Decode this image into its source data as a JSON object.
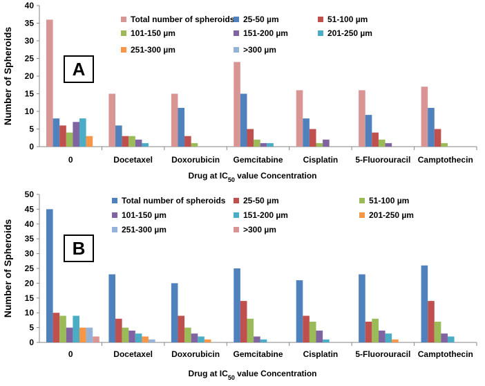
{
  "chart_data": [
    {
      "panel": "A",
      "type": "bar",
      "title": "",
      "xlabel_parts": [
        "Drug at IC",
        "50",
        " value  Concentration"
      ],
      "ylabel": "Number of Spheroids",
      "ylim": [
        0,
        40
      ],
      "yticks": [
        0,
        5,
        10,
        15,
        20,
        25,
        30,
        35,
        40
      ],
      "categories": [
        "0",
        "Docetaxel",
        "Doxorubicin",
        "Gemcitabine",
        "Cisplatin",
        "5-Fluorouracil",
        "Camptothecin"
      ],
      "series": [
        {
          "name": "Total number of spheroids",
          "color": "#D99594",
          "values": [
            36,
            15,
            15,
            24,
            16,
            16,
            17
          ]
        },
        {
          "name": "25-50 µm",
          "color": "#4F81BD",
          "values": [
            8,
            6,
            11,
            15,
            8,
            9,
            11
          ]
        },
        {
          "name": "51-100 µm",
          "color": "#C0504D",
          "values": [
            6,
            3,
            3,
            5,
            5,
            4,
            5
          ]
        },
        {
          "name": "101-150 µm",
          "color": "#9BBB59",
          "values": [
            4,
            3,
            1,
            2,
            1,
            2,
            1
          ]
        },
        {
          "name": "151-200 µm",
          "color": "#8064A2",
          "values": [
            7,
            2,
            0,
            1,
            2,
            1,
            0
          ]
        },
        {
          "name": "201-250 µm",
          "color": "#4BACC6",
          "values": [
            8,
            1,
            0,
            1,
            0,
            0,
            0
          ]
        },
        {
          "name": "251-300 µm",
          "color": "#F79646",
          "values": [
            3,
            0,
            0,
            0,
            0,
            0,
            0
          ]
        },
        {
          "name": ">300 µm",
          "color": "#95B3D7",
          "values": [
            0,
            0,
            0,
            0,
            0,
            0,
            0
          ]
        }
      ]
    },
    {
      "panel": "B",
      "type": "bar",
      "title": "",
      "xlabel_parts": [
        "Drug at IC",
        "50",
        " value  Concentration"
      ],
      "ylabel": "Number of Spheroids",
      "ylim": [
        0,
        50
      ],
      "yticks": [
        0,
        5,
        10,
        15,
        20,
        25,
        30,
        35,
        40,
        45,
        50
      ],
      "categories": [
        "0",
        "Docetaxel",
        "Doxorubicin",
        "Gemcitabine",
        "Cisplatin",
        "5-Fluorouracil",
        "Camptothecin"
      ],
      "series": [
        {
          "name": "Total number of spheroids",
          "color": "#4F81BD",
          "values": [
            45,
            23,
            20,
            25,
            21,
            23,
            26
          ]
        },
        {
          "name": "25-50 µm",
          "color": "#C0504D",
          "values": [
            10,
            8,
            9,
            14,
            9,
            7,
            14
          ]
        },
        {
          "name": "51-100 µm",
          "color": "#9BBB59",
          "values": [
            9,
            5,
            5,
            8,
            7,
            8,
            7
          ]
        },
        {
          "name": "101-150 µm",
          "color": "#8064A2",
          "values": [
            5,
            4,
            3,
            2,
            4,
            4,
            3
          ]
        },
        {
          "name": "151-200 µm",
          "color": "#4BACC6",
          "values": [
            9,
            3,
            2,
            1,
            1,
            3,
            2
          ]
        },
        {
          "name": "201-250 µm",
          "color": "#F79646",
          "values": [
            5,
            2,
            1,
            0,
            0,
            1,
            0
          ]
        },
        {
          "name": "251-300 µm",
          "color": "#95B3D7",
          "values": [
            5,
            1,
            0,
            0,
            0,
            0,
            0
          ]
        },
        {
          "name": ">300 µm",
          "color": "#D99594",
          "values": [
            2,
            0,
            0,
            0,
            0,
            0,
            0
          ]
        }
      ]
    }
  ]
}
